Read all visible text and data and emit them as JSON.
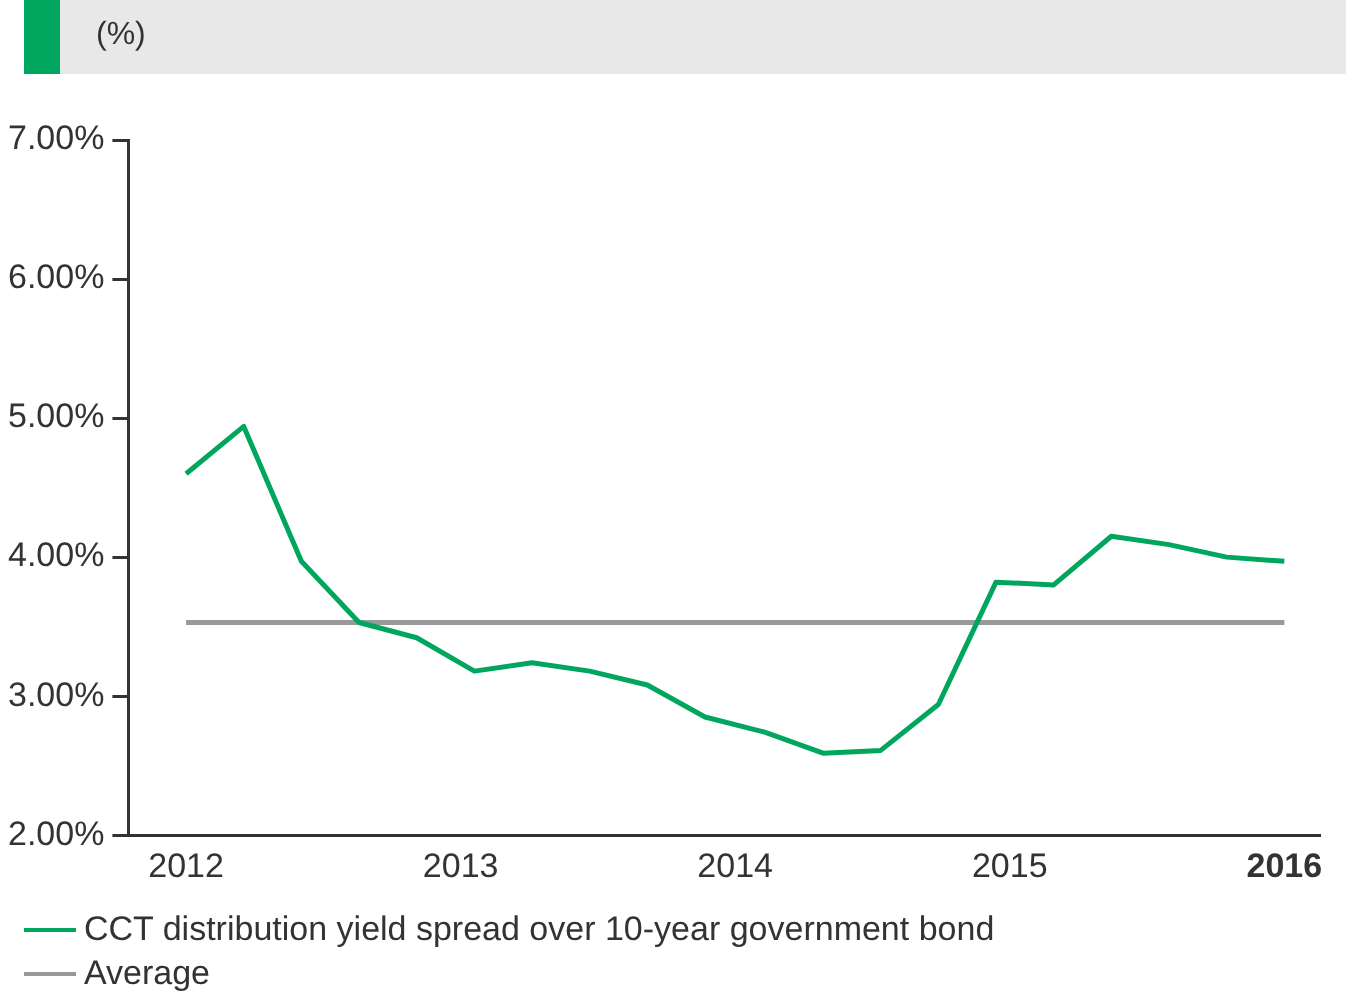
{
  "chart_data": {
    "type": "line",
    "title": "(%)",
    "series": [
      {
        "name": "CCT distribution yield spread over 10-year government bond",
        "color": "#00a65d",
        "x": [
          2012,
          2012.21,
          2012.42,
          2012.63,
          2012.84,
          2013.05,
          2013.26,
          2013.47,
          2013.68,
          2013.89,
          2014.11,
          2014.32,
          2014.53,
          2014.74,
          2014.95,
          2015.16,
          2015.37,
          2015.58,
          2015.79,
          2016
        ],
        "values": [
          4.6,
          4.94,
          3.97,
          3.53,
          3.42,
          3.18,
          3.24,
          3.18,
          3.08,
          2.85,
          2.74,
          2.59,
          2.61,
          2.94,
          3.82,
          3.8,
          4.15,
          4.09,
          4.0,
          3.97
        ]
      },
      {
        "name": "Average",
        "color": "#999999",
        "x": [
          2012,
          2016
        ],
        "values": [
          3.53,
          3.53
        ]
      }
    ],
    "xlim": [
      2011.79,
      2016.13
    ],
    "ylim": [
      2,
      7
    ],
    "xticks": [
      2012,
      2013,
      2014,
      2015,
      {
        "value": 2016,
        "label": "2016"
      }
    ],
    "yticks": [
      {
        "value": 2,
        "label": "2.00%"
      },
      {
        "value": 3,
        "label": "3.00%"
      },
      {
        "value": 4,
        "label": "4.00%"
      },
      {
        "value": 5,
        "label": "5.00%"
      },
      {
        "value": 6,
        "label": "6.00%"
      },
      {
        "value": 7,
        "label": "7.00%"
      }
    ],
    "grid": false,
    "legend": "bottom left",
    "marker": "none",
    "line_style": "solid"
  }
}
